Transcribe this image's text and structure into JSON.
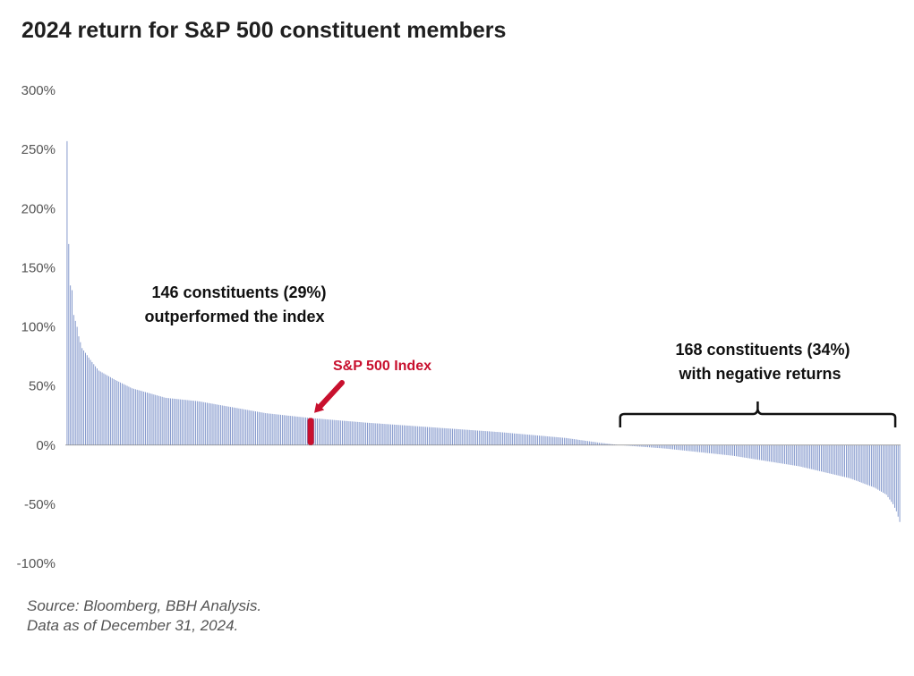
{
  "title": "2024 return for S&P 500 constituent members",
  "source": {
    "line1": "Source: Bloomberg, BBH Analysis.",
    "line2": "Data as of December 31, 2024."
  },
  "annotations": {
    "outperform_line1": "146 constituents (29%)",
    "outperform_line2": "outperformed the index",
    "negative_line1": "168 constituents (34%)",
    "negative_line2": "with negative returns",
    "index_label": "S&P 500 Index"
  },
  "colors": {
    "bar": "#7a90c8",
    "index": "#c8102e",
    "axis": "#888888",
    "text": "#1f1f1f"
  },
  "chart_data": {
    "type": "bar",
    "title": "2024 return for S&P 500 constituent members",
    "xlabel": "",
    "ylabel": "",
    "ylim": [
      -100,
      300
    ],
    "yticks": [
      300,
      250,
      200,
      150,
      100,
      50,
      0,
      -50,
      -100
    ],
    "ytick_labels": [
      "300%",
      "250%",
      "200%",
      "150%",
      "100%",
      "50%",
      "0%",
      "-50%",
      "-100%"
    ],
    "n_constituents": 500,
    "n_outperformed": 146,
    "pct_outperformed": 29,
    "n_negative": 168,
    "pct_negative": 34,
    "index_return": 23,
    "index_rank": 147,
    "sorted_return_anchors": [
      {
        "rank": 1,
        "value": 257
      },
      {
        "rank": 2,
        "value": 170
      },
      {
        "rank": 3,
        "value": 135
      },
      {
        "rank": 4,
        "value": 131
      },
      {
        "rank": 5,
        "value": 110
      },
      {
        "rank": 6,
        "value": 105
      },
      {
        "rank": 7,
        "value": 100
      },
      {
        "rank": 8,
        "value": 92
      },
      {
        "rank": 10,
        "value": 82
      },
      {
        "rank": 15,
        "value": 72
      },
      {
        "rank": 20,
        "value": 63
      },
      {
        "rank": 30,
        "value": 55
      },
      {
        "rank": 40,
        "value": 48
      },
      {
        "rank": 60,
        "value": 40
      },
      {
        "rank": 80,
        "value": 37
      },
      {
        "rank": 100,
        "value": 32
      },
      {
        "rank": 120,
        "value": 27
      },
      {
        "rank": 146,
        "value": 23
      },
      {
        "rank": 180,
        "value": 19
      },
      {
        "rank": 220,
        "value": 15
      },
      {
        "rank": 260,
        "value": 11
      },
      {
        "rank": 300,
        "value": 6
      },
      {
        "rank": 320,
        "value": 2
      },
      {
        "rank": 332,
        "value": 0
      },
      {
        "rank": 360,
        "value": -3
      },
      {
        "rank": 400,
        "value": -9
      },
      {
        "rank": 440,
        "value": -18
      },
      {
        "rank": 470,
        "value": -28
      },
      {
        "rank": 485,
        "value": -36
      },
      {
        "rank": 492,
        "value": -42
      },
      {
        "rank": 496,
        "value": -50
      },
      {
        "rank": 498,
        "value": -56
      },
      {
        "rank": 500,
        "value": -65
      }
    ]
  }
}
